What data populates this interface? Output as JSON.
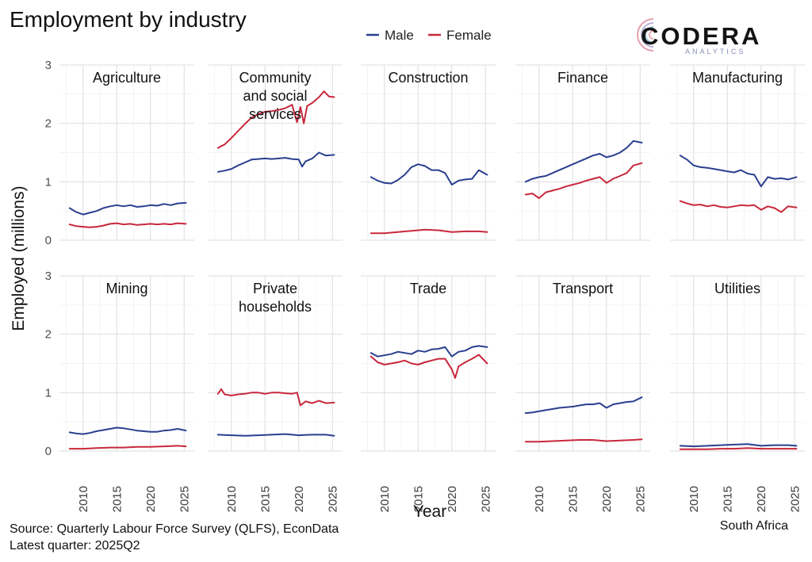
{
  "title": "Employment by industry",
  "logo": {
    "name": "CODERA",
    "sub": "ANALYTICS"
  },
  "footer": {
    "source": "Source: Quarterly Labour Force Survey (QLFS), EconData",
    "latest": "Latest quarter: 2025Q2",
    "country": "South Africa"
  },
  "chart_data": {
    "type": "line",
    "xlabel": "Year",
    "ylabel": "Employed (millions)",
    "xlim": [
      2006.5,
      2026.5
    ],
    "ylim": [
      0,
      3
    ],
    "x_ticks": [
      2010,
      2015,
      2020,
      2025
    ],
    "y_ticks": [
      0,
      1,
      2,
      3
    ],
    "legend_position": "top",
    "series_names": [
      "Male",
      "Female"
    ],
    "colors": {
      "Male": "#2a3f8f",
      "Female": "#c8283c"
    },
    "panels": [
      {
        "name": "Agriculture",
        "title_lines": [
          "Agriculture"
        ],
        "series": [
          {
            "name": "Male",
            "x": [
              2008,
              2009,
              2010,
              2011,
              2012,
              2013,
              2014,
              2015,
              2016,
              2017,
              2018,
              2019,
              2020,
              2021,
              2022,
              2023,
              2024,
              2025.25
            ],
            "values": [
              0.55,
              0.48,
              0.44,
              0.47,
              0.5,
              0.55,
              0.58,
              0.6,
              0.58,
              0.6,
              0.57,
              0.58,
              0.6,
              0.59,
              0.62,
              0.6,
              0.63,
              0.64
            ]
          },
          {
            "name": "Female",
            "x": [
              2008,
              2009,
              2010,
              2011,
              2012,
              2013,
              2014,
              2015,
              2016,
              2017,
              2018,
              2019,
              2020,
              2021,
              2022,
              2023,
              2024,
              2025.25
            ],
            "values": [
              0.27,
              0.24,
              0.23,
              0.22,
              0.23,
              0.25,
              0.28,
              0.29,
              0.27,
              0.28,
              0.26,
              0.27,
              0.28,
              0.27,
              0.28,
              0.27,
              0.29,
              0.28
            ]
          }
        ]
      },
      {
        "name": "Community and social services",
        "title_lines": [
          "Community",
          "and social",
          "services"
        ],
        "series": [
          {
            "name": "Male",
            "x": [
              2008,
              2009,
              2010,
              2011,
              2012,
              2013,
              2014,
              2015,
              2016,
              2017,
              2018,
              2019,
              2020,
              2020.5,
              2021,
              2022,
              2023,
              2024,
              2025.25
            ],
            "values": [
              1.17,
              1.19,
              1.22,
              1.28,
              1.33,
              1.38,
              1.39,
              1.4,
              1.39,
              1.4,
              1.41,
              1.39,
              1.38,
              1.26,
              1.35,
              1.4,
              1.5,
              1.45,
              1.46
            ]
          },
          {
            "name": "Female",
            "x": [
              2008,
              2009,
              2010,
              2011,
              2012,
              2013,
              2014,
              2015,
              2016,
              2017,
              2018,
              2019,
              2019.75,
              2020.25,
              2020.75,
              2021.25,
              2022,
              2023,
              2023.75,
              2024.5,
              2025.25
            ],
            "values": [
              1.58,
              1.64,
              1.75,
              1.87,
              1.99,
              2.1,
              2.16,
              2.2,
              2.21,
              2.23,
              2.26,
              2.32,
              2.02,
              2.28,
              2.0,
              2.3,
              2.35,
              2.45,
              2.55,
              2.46,
              2.45
            ]
          }
        ]
      },
      {
        "name": "Construction",
        "title_lines": [
          "Construction"
        ],
        "series": [
          {
            "name": "Male",
            "x": [
              2008,
              2009,
              2010,
              2011,
              2012,
              2013,
              2014,
              2015,
              2016,
              2017,
              2018,
              2019,
              2020,
              2021,
              2022,
              2023,
              2024,
              2025.25
            ],
            "values": [
              1.08,
              1.02,
              0.98,
              0.97,
              1.03,
              1.12,
              1.25,
              1.3,
              1.27,
              1.2,
              1.2,
              1.15,
              0.95,
              1.02,
              1.04,
              1.05,
              1.2,
              1.12
            ]
          },
          {
            "name": "Female",
            "x": [
              2008,
              2010,
              2012,
              2014,
              2016,
              2018,
              2020,
              2022,
              2024,
              2025.25
            ],
            "values": [
              0.12,
              0.12,
              0.14,
              0.16,
              0.18,
              0.17,
              0.14,
              0.15,
              0.15,
              0.14
            ]
          }
        ]
      },
      {
        "name": "Finance",
        "title_lines": [
          "Finance"
        ],
        "series": [
          {
            "name": "Male",
            "x": [
              2008,
              2009,
              2010,
              2011,
              2012,
              2013,
              2014,
              2015,
              2016,
              2017,
              2018,
              2019,
              2020,
              2021,
              2022,
              2023,
              2024,
              2025.25
            ],
            "values": [
              1.0,
              1.05,
              1.08,
              1.1,
              1.15,
              1.2,
              1.25,
              1.3,
              1.35,
              1.4,
              1.45,
              1.48,
              1.42,
              1.45,
              1.5,
              1.58,
              1.7,
              1.67
            ]
          },
          {
            "name": "Female",
            "x": [
              2008,
              2009,
              2010,
              2011,
              2012,
              2013,
              2014,
              2015,
              2016,
              2017,
              2018,
              2019,
              2020,
              2021,
              2022,
              2023,
              2024,
              2025.25
            ],
            "values": [
              0.78,
              0.8,
              0.72,
              0.82,
              0.85,
              0.88,
              0.92,
              0.95,
              0.98,
              1.02,
              1.05,
              1.08,
              0.98,
              1.05,
              1.1,
              1.15,
              1.28,
              1.32
            ]
          }
        ]
      },
      {
        "name": "Manufacturing",
        "title_lines": [
          "Manufacturing"
        ],
        "series": [
          {
            "name": "Male",
            "x": [
              2008,
              2009,
              2010,
              2011,
              2012,
              2013,
              2014,
              2015,
              2016,
              2017,
              2018,
              2019,
              2020,
              2021,
              2022,
              2023,
              2024,
              2025.25
            ],
            "values": [
              1.45,
              1.38,
              1.28,
              1.25,
              1.24,
              1.22,
              1.2,
              1.18,
              1.16,
              1.2,
              1.14,
              1.12,
              0.92,
              1.08,
              1.05,
              1.06,
              1.04,
              1.08
            ]
          },
          {
            "name": "Female",
            "x": [
              2008,
              2009,
              2010,
              2011,
              2012,
              2013,
              2014,
              2015,
              2016,
              2017,
              2018,
              2019,
              2020,
              2021,
              2022,
              2023,
              2024,
              2025.25
            ],
            "values": [
              0.67,
              0.63,
              0.6,
              0.61,
              0.58,
              0.6,
              0.57,
              0.56,
              0.58,
              0.6,
              0.59,
              0.6,
              0.52,
              0.58,
              0.55,
              0.48,
              0.58,
              0.56
            ]
          }
        ]
      },
      {
        "name": "Mining",
        "title_lines": [
          "Mining"
        ],
        "series": [
          {
            "name": "Male",
            "x": [
              2008,
              2009,
              2010,
              2011,
              2012,
              2013,
              2014,
              2015,
              2016,
              2017,
              2018,
              2019,
              2020,
              2021,
              2022,
              2023,
              2024,
              2025.25
            ],
            "values": [
              0.32,
              0.3,
              0.29,
              0.31,
              0.34,
              0.36,
              0.38,
              0.4,
              0.39,
              0.37,
              0.35,
              0.34,
              0.33,
              0.33,
              0.35,
              0.36,
              0.38,
              0.35
            ]
          },
          {
            "name": "Female",
            "x": [
              2008,
              2010,
              2012,
              2014,
              2016,
              2018,
              2020,
              2022,
              2024,
              2025.25
            ],
            "values": [
              0.04,
              0.04,
              0.05,
              0.06,
              0.06,
              0.07,
              0.07,
              0.08,
              0.09,
              0.08
            ]
          }
        ]
      },
      {
        "name": "Private households",
        "title_lines": [
          "Private",
          "households"
        ],
        "series": [
          {
            "name": "Male",
            "x": [
              2008,
              2010,
              2012,
              2014,
              2016,
              2018,
              2020,
              2022,
              2024,
              2025.25
            ],
            "values": [
              0.28,
              0.27,
              0.26,
              0.27,
              0.28,
              0.29,
              0.27,
              0.28,
              0.28,
              0.26
            ]
          },
          {
            "name": "Female",
            "x": [
              2008,
              2008.5,
              2009,
              2010,
              2011,
              2012,
              2013,
              2014,
              2015,
              2016,
              2017,
              2018,
              2019,
              2019.75,
              2020.25,
              2021,
              2022,
              2023,
              2024,
              2025.25
            ],
            "values": [
              0.98,
              1.06,
              0.97,
              0.95,
              0.97,
              0.98,
              1.0,
              1.0,
              0.98,
              1.0,
              1.0,
              0.99,
              0.98,
              1.0,
              0.78,
              0.85,
              0.82,
              0.86,
              0.82,
              0.83
            ]
          }
        ]
      },
      {
        "name": "Trade",
        "title_lines": [
          "Trade"
        ],
        "series": [
          {
            "name": "Male",
            "x": [
              2008,
              2009,
              2010,
              2011,
              2012,
              2013,
              2014,
              2015,
              2016,
              2017,
              2018,
              2019,
              2020,
              2021,
              2022,
              2023,
              2024,
              2025.25
            ],
            "values": [
              1.68,
              1.62,
              1.64,
              1.66,
              1.7,
              1.68,
              1.66,
              1.72,
              1.7,
              1.74,
              1.75,
              1.78,
              1.62,
              1.7,
              1.72,
              1.78,
              1.8,
              1.78
            ]
          },
          {
            "name": "Female",
            "x": [
              2008,
              2009,
              2010,
              2011,
              2012,
              2013,
              2014,
              2015,
              2016,
              2017,
              2018,
              2019,
              2020,
              2020.5,
              2021,
              2022,
              2023,
              2024,
              2025.25
            ],
            "values": [
              1.62,
              1.52,
              1.48,
              1.5,
              1.52,
              1.55,
              1.5,
              1.48,
              1.52,
              1.55,
              1.58,
              1.58,
              1.4,
              1.25,
              1.45,
              1.52,
              1.58,
              1.65,
              1.5
            ]
          }
        ]
      },
      {
        "name": "Transport",
        "title_lines": [
          "Transport"
        ],
        "series": [
          {
            "name": "Male",
            "x": [
              2008,
              2009,
              2010,
              2011,
              2012,
              2013,
              2014,
              2015,
              2016,
              2017,
              2018,
              2019,
              2020,
              2021,
              2022,
              2023,
              2024,
              2025.25
            ],
            "values": [
              0.65,
              0.66,
              0.68,
              0.7,
              0.72,
              0.74,
              0.75,
              0.76,
              0.78,
              0.8,
              0.8,
              0.82,
              0.74,
              0.8,
              0.82,
              0.84,
              0.85,
              0.92
            ]
          },
          {
            "name": "Female",
            "x": [
              2008,
              2010,
              2012,
              2014,
              2016,
              2018,
              2020,
              2022,
              2024,
              2025.25
            ],
            "values": [
              0.16,
              0.16,
              0.17,
              0.18,
              0.19,
              0.19,
              0.17,
              0.18,
              0.19,
              0.2
            ]
          }
        ]
      },
      {
        "name": "Utilities",
        "title_lines": [
          "Utilities"
        ],
        "series": [
          {
            "name": "Male",
            "x": [
              2008,
              2010,
              2012,
              2014,
              2016,
              2018,
              2020,
              2022,
              2024,
              2025.25
            ],
            "values": [
              0.09,
              0.08,
              0.09,
              0.1,
              0.11,
              0.12,
              0.09,
              0.1,
              0.1,
              0.09
            ]
          },
          {
            "name": "Female",
            "x": [
              2008,
              2010,
              2012,
              2014,
              2016,
              2018,
              2020,
              2022,
              2024,
              2025.25
            ],
            "values": [
              0.03,
              0.03,
              0.03,
              0.04,
              0.04,
              0.05,
              0.04,
              0.04,
              0.04,
              0.04
            ]
          }
        ]
      }
    ]
  }
}
